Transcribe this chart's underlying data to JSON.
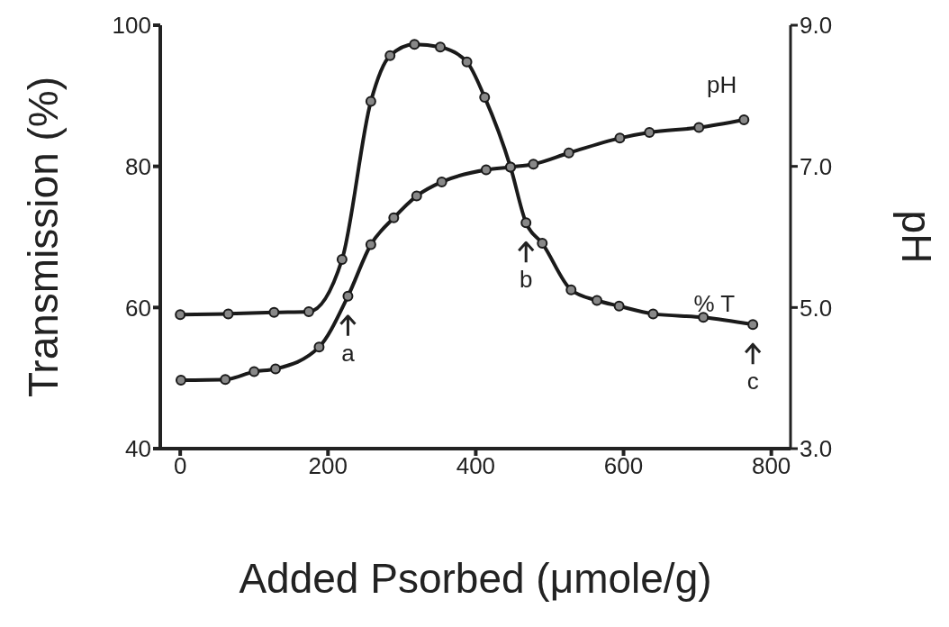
{
  "chart_data": {
    "type": "line",
    "xlabel": "Added Psorbed (μmole/g)",
    "ylabel": "Transmission (%)",
    "y2label": "pH",
    "xlim": [
      -27,
      826
    ],
    "xticks": [
      0,
      200,
      400,
      600,
      800
    ],
    "ylim": [
      40,
      100
    ],
    "yticks": [
      40,
      60,
      80,
      100
    ],
    "y2lim": [
      3,
      9
    ],
    "y2ticks": [
      {
        "value": 3,
        "label": "3.0"
      },
      {
        "value": 5,
        "label": "5.0"
      },
      {
        "value": 7,
        "label": "7.0"
      },
      {
        "value": 9,
        "label": "9.0"
      }
    ],
    "marker": "circle",
    "line_style": "solid",
    "series": [
      {
        "name": "% T",
        "color": "#1a1a1a",
        "x": [
          0,
          65,
          127,
          174,
          219,
          258,
          284,
          317,
          352,
          388,
          412,
          447,
          468,
          490,
          529,
          564,
          594,
          640,
          708,
          775
        ],
        "values": [
          59.0,
          59.1,
          59.3,
          59.4,
          66.8,
          89.2,
          95.7,
          97.3,
          96.9,
          94.8,
          89.8,
          79.9,
          72.0,
          69.1,
          62.5,
          61.0,
          60.2,
          59.1,
          58.6,
          57.6
        ]
      },
      {
        "name": "pH",
        "color": "#1a1a1a",
        "axis": "y2",
        "x": [
          1,
          61,
          100,
          129,
          188,
          227,
          258,
          289,
          320,
          354,
          414,
          447,
          478,
          526,
          595,
          635,
          702,
          763
        ],
        "values": [
          3.97,
          3.98,
          4.09,
          4.13,
          4.44,
          5.16,
          5.89,
          6.27,
          6.58,
          6.78,
          6.95,
          6.99,
          7.03,
          7.19,
          7.4,
          7.48,
          7.55,
          7.66
        ]
      }
    ],
    "annotations": [
      {
        "text": "a",
        "x": 227,
        "y": 61.6
      },
      {
        "text": "b",
        "x": 468,
        "y": 72.0
      },
      {
        "text": "c",
        "x": 775,
        "y": 57.6
      }
    ]
  }
}
